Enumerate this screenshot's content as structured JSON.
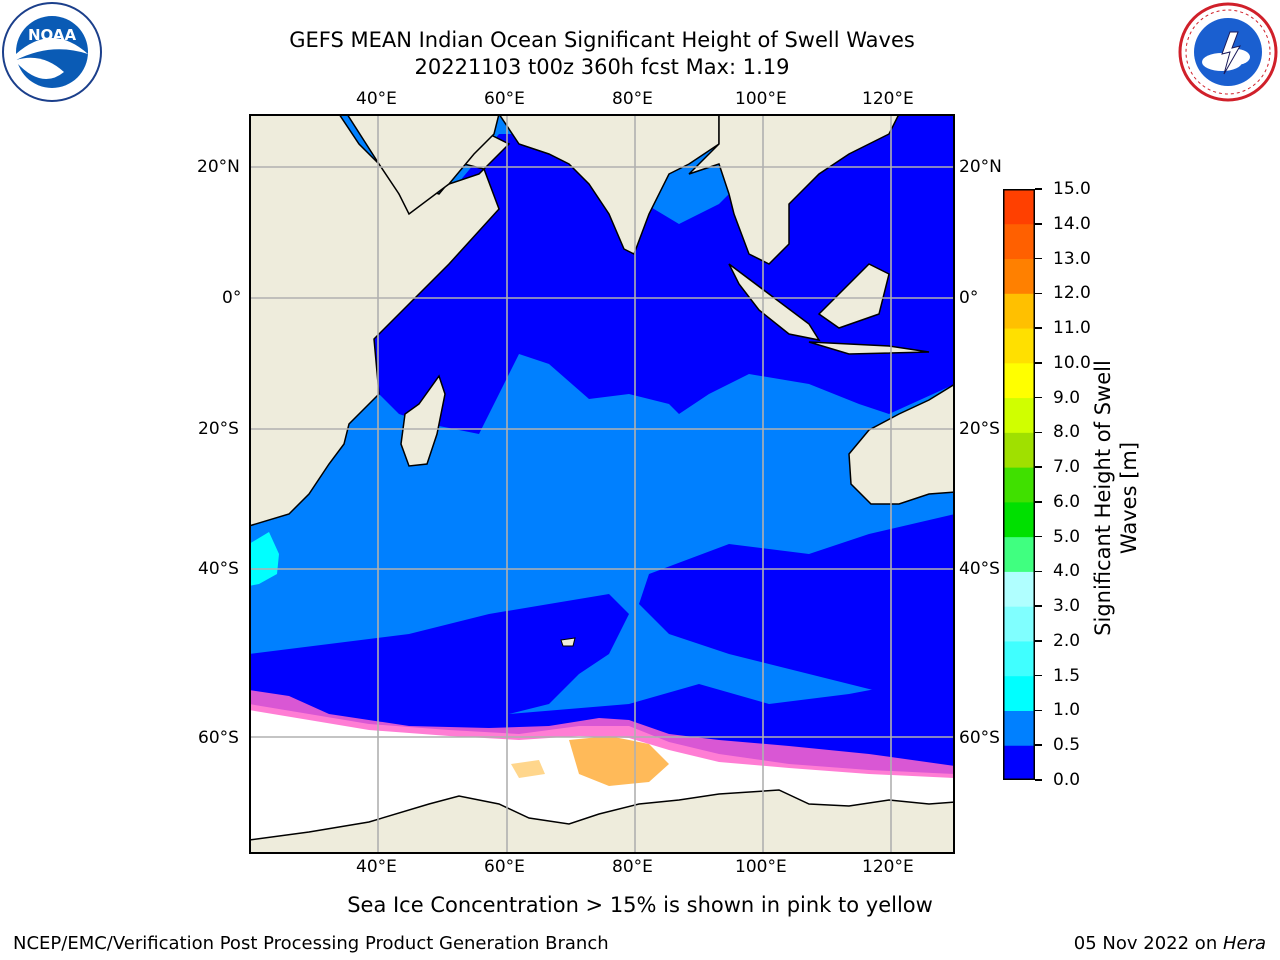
{
  "header": {
    "title_line1": "GEFS MEAN Indian Ocean Significant Height of Swell Waves",
    "title_line2": "20221103 t00z 360h fcst   Max: 1.19"
  },
  "logos": {
    "left": {
      "icon": "noaa-logo-icon",
      "text": "NOAA"
    },
    "right": {
      "icon": "nws-logo-icon"
    }
  },
  "map": {
    "lon_labels": [
      "40°E",
      "60°E",
      "80°E",
      "100°E",
      "120°E"
    ],
    "lat_labels": [
      "20°N",
      "0°",
      "20°S",
      "40°S",
      "60°S"
    ],
    "colors": {
      "ocean_deep": "#0000ff",
      "ocean_light": "#0080ff",
      "land": "#eeecdc",
      "ice": "#ffffff",
      "grid": "#b0b0b0"
    }
  },
  "colorbar": {
    "title": "Significant Height of Swell Waves [m]",
    "tick_labels": [
      "0.0",
      "0.5",
      "1.0",
      "1.5",
      "2.0",
      "3.0",
      "4.0",
      "5.0",
      "6.0",
      "7.0",
      "8.0",
      "9.0",
      "10.0",
      "11.0",
      "12.0",
      "13.0",
      "14.0",
      "15.0"
    ],
    "colors": [
      "#0000ff",
      "#0080ff",
      "#00ffff",
      "#40ffff",
      "#80ffff",
      "#b0ffff",
      "#40ff80",
      "#00e000",
      "#40e000",
      "#a0e000",
      "#d0ff00",
      "#ffff00",
      "#ffe000",
      "#ffc000",
      "#ff8000",
      "#ff6000",
      "#ff4000",
      "#ff0000"
    ]
  },
  "footer": {
    "caption": "Sea Ice Concentration > 15% is shown in pink to yellow",
    "left": "NCEP/EMC/Verification Post Processing Product Generation Branch",
    "right_prefix": "05 Nov 2022 on ",
    "right_machine": "Hera"
  }
}
